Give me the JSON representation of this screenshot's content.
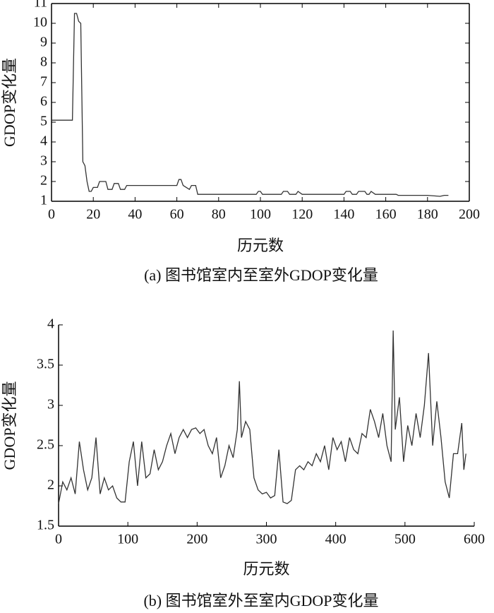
{
  "chart_data": [
    {
      "type": "line",
      "caption": "(a) 图书馆室内至室外GDOP变化量",
      "xlabel": "历元数",
      "ylabel": "GDOP变化量",
      "xlim": [
        0,
        200
      ],
      "ylim": [
        1,
        11
      ],
      "xticks": [
        0,
        20,
        40,
        60,
        80,
        100,
        120,
        140,
        160,
        180,
        200
      ],
      "yticks": [
        1,
        2,
        3,
        4,
        5,
        6,
        7,
        8,
        9,
        10,
        11
      ],
      "color": "#333333",
      "x": [
        0,
        10,
        11,
        12,
        13,
        14,
        15,
        16,
        17,
        18,
        19,
        20,
        22,
        23,
        26,
        27,
        29,
        30,
        32,
        33,
        35,
        36,
        60,
        61,
        62,
        63,
        66,
        67,
        69,
        70,
        98,
        99,
        100,
        101,
        110,
        111,
        113,
        114,
        117,
        118,
        120,
        140,
        141,
        143,
        144,
        146,
        147,
        150,
        151,
        152,
        153,
        155,
        165,
        166,
        180,
        186,
        188,
        190
      ],
      "values": [
        5.1,
        5.1,
        10.5,
        10.5,
        10.1,
        10,
        3,
        2.8,
        2,
        1.5,
        1.5,
        1.7,
        1.7,
        2,
        2,
        1.6,
        1.6,
        1.9,
        1.9,
        1.6,
        1.6,
        1.8,
        1.8,
        2.1,
        2.1,
        1.8,
        1.6,
        1.8,
        1.8,
        1.35,
        1.35,
        1.5,
        1.5,
        1.35,
        1.35,
        1.5,
        1.5,
        1.35,
        1.35,
        1.5,
        1.35,
        1.35,
        1.5,
        1.5,
        1.35,
        1.35,
        1.5,
        1.5,
        1.35,
        1.35,
        1.5,
        1.35,
        1.35,
        1.3,
        1.3,
        1.25,
        1.3,
        1.3
      ]
    },
    {
      "type": "line",
      "caption": "(b) 图书馆室外至室内GDOP变化量",
      "xlabel": "历元数",
      "ylabel": "GDOP变化量",
      "xlim": [
        0,
        600
      ],
      "ylim": [
        1.5,
        4
      ],
      "xticks": [
        0,
        100,
        200,
        300,
        400,
        500,
        600
      ],
      "yticks": [
        1.5,
        2,
        2.5,
        3,
        3.5,
        4
      ],
      "color": "#333333",
      "x": [
        0,
        6,
        12,
        18,
        24,
        30,
        36,
        42,
        48,
        54,
        60,
        66,
        72,
        78,
        84,
        90,
        96,
        102,
        108,
        114,
        120,
        126,
        132,
        138,
        144,
        150,
        156,
        162,
        168,
        174,
        180,
        186,
        192,
        198,
        204,
        210,
        216,
        222,
        228,
        234,
        240,
        246,
        252,
        258,
        261,
        264,
        270,
        276,
        282,
        288,
        294,
        300,
        306,
        312,
        318,
        324,
        330,
        336,
        342,
        348,
        354,
        360,
        366,
        372,
        378,
        384,
        390,
        396,
        402,
        408,
        414,
        420,
        426,
        432,
        438,
        444,
        450,
        456,
        462,
        468,
        474,
        480,
        483,
        486,
        492,
        498,
        504,
        510,
        516,
        522,
        528,
        534,
        540,
        546,
        552,
        558,
        564,
        570,
        576,
        582,
        585,
        588
      ],
      "values": [
        1.78,
        2.05,
        1.95,
        2.1,
        1.9,
        2.55,
        2.2,
        1.95,
        2.1,
        2.6,
        1.9,
        2.1,
        1.95,
        2.0,
        1.85,
        1.8,
        1.8,
        2.3,
        2.55,
        2.0,
        2.55,
        2.1,
        2.15,
        2.45,
        2.2,
        2.3,
        2.5,
        2.65,
        2.4,
        2.6,
        2.7,
        2.6,
        2.7,
        2.72,
        2.65,
        2.7,
        2.5,
        2.4,
        2.6,
        2.1,
        2.25,
        2.5,
        2.35,
        2.7,
        3.3,
        2.6,
        2.8,
        2.7,
        2.1,
        1.95,
        1.9,
        1.92,
        1.85,
        1.88,
        2.45,
        1.8,
        1.78,
        1.82,
        2.2,
        2.25,
        2.2,
        2.3,
        2.25,
        2.4,
        2.3,
        2.5,
        2.2,
        2.6,
        2.45,
        2.55,
        2.3,
        2.6,
        2.45,
        2.4,
        2.65,
        2.6,
        2.95,
        2.8,
        2.6,
        2.9,
        2.5,
        2.3,
        3.93,
        2.7,
        3.1,
        2.3,
        2.75,
        2.5,
        2.9,
        2.6,
        3.0,
        3.65,
        2.5,
        3.05,
        2.6,
        2.05,
        1.85,
        2.4,
        2.4,
        2.78,
        2.2,
        2.4
      ]
    }
  ]
}
